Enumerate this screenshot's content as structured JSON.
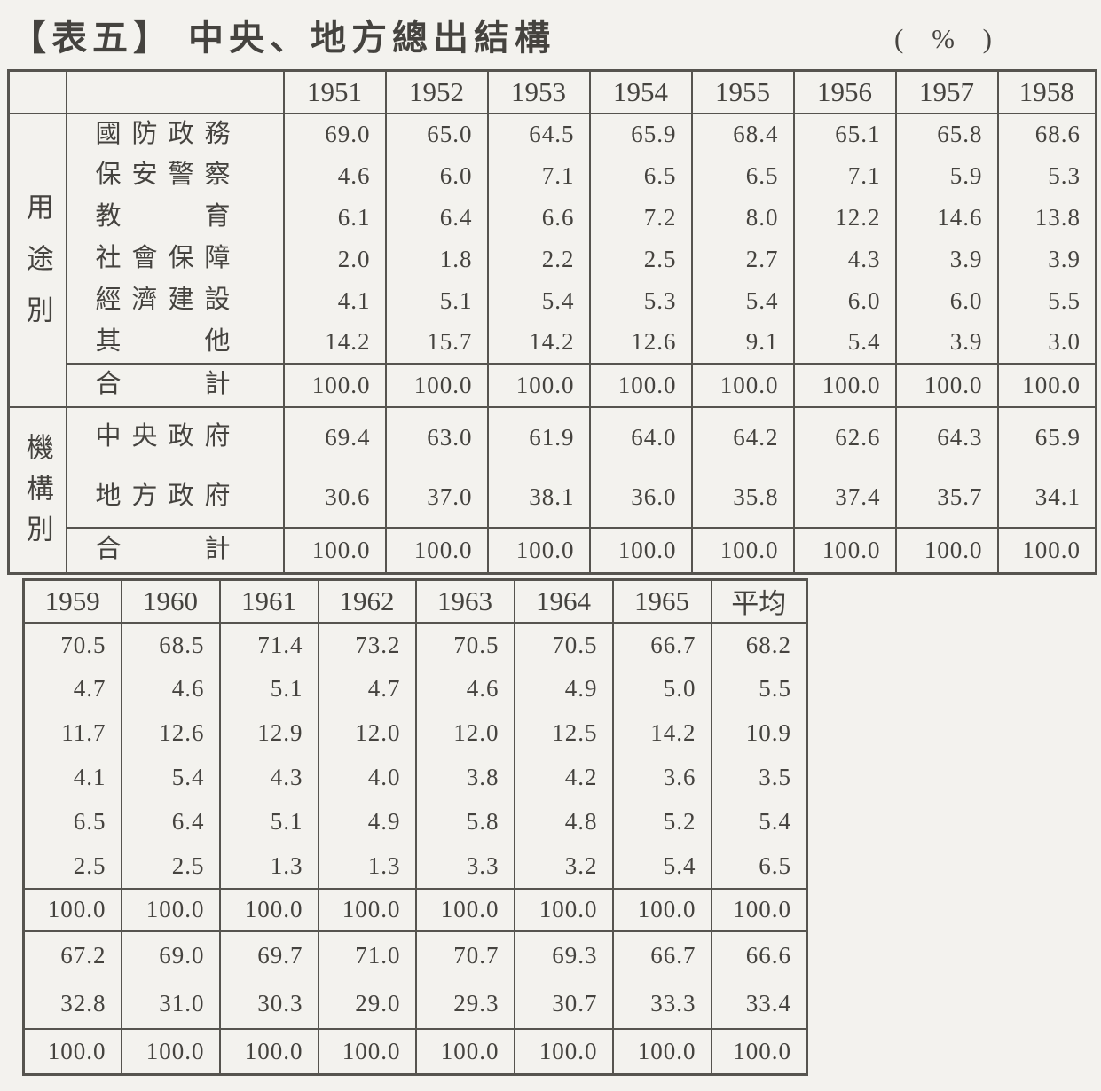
{
  "page": {
    "title": "【表五】 中央、地方總出結構",
    "unit": "( % )"
  },
  "groups": {
    "usage": "用途別",
    "organ": "機構別"
  },
  "table1": {
    "years": [
      "1951",
      "1952",
      "1953",
      "1954",
      "1955",
      "1956",
      "1957",
      "1958"
    ]
  },
  "table2": {
    "years": [
      "1959",
      "1960",
      "1961",
      "1962",
      "1963",
      "1964",
      "1965",
      "平均"
    ]
  },
  "rows": {
    "usage": [
      {
        "label": "國防政務",
        "t1": [
          "69.0",
          "65.0",
          "64.5",
          "65.9",
          "68.4",
          "65.1",
          "65.8",
          "68.6"
        ],
        "t2": [
          "70.5",
          "68.5",
          "71.4",
          "73.2",
          "70.5",
          "70.5",
          "66.7",
          "68.2"
        ]
      },
      {
        "label": "保安警察",
        "t1": [
          "4.6",
          "6.0",
          "7.1",
          "6.5",
          "6.5",
          "7.1",
          "5.9",
          "5.3"
        ],
        "t2": [
          "4.7",
          "4.6",
          "5.1",
          "4.7",
          "4.6",
          "4.9",
          "5.0",
          "5.5"
        ]
      },
      {
        "label": "教育",
        "t1": [
          "6.1",
          "6.4",
          "6.6",
          "7.2",
          "8.0",
          "12.2",
          "14.6",
          "13.8"
        ],
        "t2": [
          "11.7",
          "12.6",
          "12.9",
          "12.0",
          "12.0",
          "12.5",
          "14.2",
          "10.9"
        ]
      },
      {
        "label": "社會保障",
        "t1": [
          "2.0",
          "1.8",
          "2.2",
          "2.5",
          "2.7",
          "4.3",
          "3.9",
          "3.9"
        ],
        "t2": [
          "4.1",
          "5.4",
          "4.3",
          "4.0",
          "3.8",
          "4.2",
          "3.6",
          "3.5"
        ]
      },
      {
        "label": "經濟建設",
        "t1": [
          "4.1",
          "5.1",
          "5.4",
          "5.3",
          "5.4",
          "6.0",
          "6.0",
          "5.5"
        ],
        "t2": [
          "6.5",
          "6.4",
          "5.1",
          "4.9",
          "5.8",
          "4.8",
          "5.2",
          "5.4"
        ]
      },
      {
        "label": "其他",
        "t1": [
          "14.2",
          "15.7",
          "14.2",
          "12.6",
          "9.1",
          "5.4",
          "3.9",
          "3.0"
        ],
        "t2": [
          "2.5",
          "2.5",
          "1.3",
          "1.3",
          "3.3",
          "3.2",
          "5.4",
          "6.5"
        ]
      }
    ],
    "usage_total": {
      "label": "合計",
      "t1": [
        "100.0",
        "100.0",
        "100.0",
        "100.0",
        "100.0",
        "100.0",
        "100.0",
        "100.0"
      ],
      "t2": [
        "100.0",
        "100.0",
        "100.0",
        "100.0",
        "100.0",
        "100.0",
        "100.0",
        "100.0"
      ]
    },
    "organ": [
      {
        "label": "中央政府",
        "t1": [
          "69.4",
          "63.0",
          "61.9",
          "64.0",
          "64.2",
          "62.6",
          "64.3",
          "65.9"
        ],
        "t2": [
          "67.2",
          "69.0",
          "69.7",
          "71.0",
          "70.7",
          "69.3",
          "66.7",
          "66.6"
        ]
      },
      {
        "label": "地方政府",
        "t1": [
          "30.6",
          "37.0",
          "38.1",
          "36.0",
          "35.8",
          "37.4",
          "35.7",
          "34.1"
        ],
        "t2": [
          "32.8",
          "31.0",
          "30.3",
          "29.0",
          "29.3",
          "30.7",
          "33.3",
          "33.4"
        ]
      }
    ],
    "organ_total": {
      "label": "合計",
      "t1": [
        "100.0",
        "100.0",
        "100.0",
        "100.0",
        "100.0",
        "100.0",
        "100.0",
        "100.0"
      ],
      "t2": [
        "100.0",
        "100.0",
        "100.0",
        "100.0",
        "100.0",
        "100.0",
        "100.0",
        "100.0"
      ]
    }
  }
}
